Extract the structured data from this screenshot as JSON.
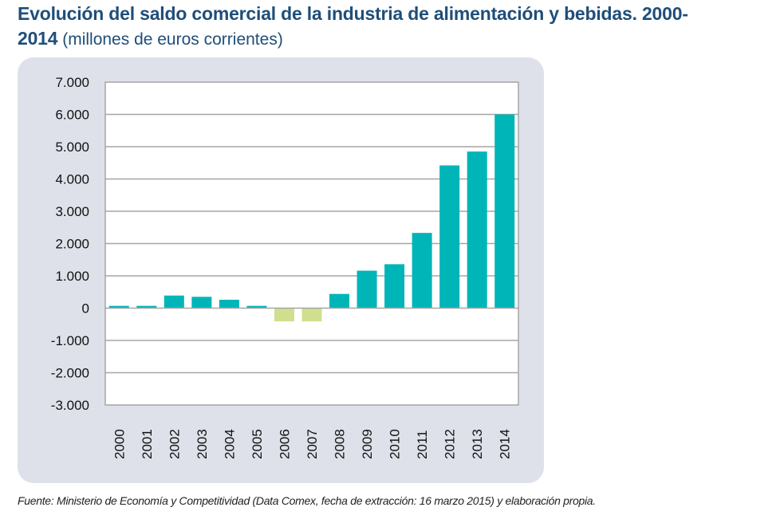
{
  "title": {
    "bold": "Evolución del saldo comercial de la industria de alimentación y bebidas. 2000-",
    "bold2": "2014",
    "light": " (millones de euros corrientes)"
  },
  "source": "Fuente: Ministerio de Economía y Competitividad (Data Comex, fecha de extracción: 16 marzo 2015) y elaboración propia.",
  "colors": {
    "positive": "#00b5b8",
    "negative": "#cfdf8f",
    "panel": "#dfe1ea",
    "grid": "#a6a6a6",
    "title": "#1f4e79"
  },
  "chart_data": {
    "type": "bar",
    "title": "Evolución del saldo comercial de la industria de alimentación y bebidas. 2000-2014 (millones de euros corrientes)",
    "xlabel": "",
    "ylabel": "",
    "categories": [
      "2000",
      "2001",
      "2002",
      "2003",
      "2004",
      "2005",
      "2006",
      "2007",
      "2008",
      "2009",
      "2010",
      "2011",
      "2012",
      "2013",
      "2014"
    ],
    "values": [
      70,
      70,
      390,
      350,
      260,
      70,
      -410,
      -410,
      440,
      1160,
      1360,
      2330,
      4420,
      4850,
      6000
    ],
    "ylim": [
      -3000,
      7000
    ],
    "yticks": [
      7000,
      6000,
      5000,
      4000,
      3000,
      2000,
      1000,
      0,
      -1000,
      -2000,
      -3000
    ],
    "ytick_labels": [
      "7.000",
      "6.000",
      "5.000",
      "4.000",
      "3.000",
      "2.000",
      "1.000",
      "0",
      "-1.000",
      "-2.000",
      "-3.000"
    ],
    "grid": true,
    "legend": "none"
  }
}
